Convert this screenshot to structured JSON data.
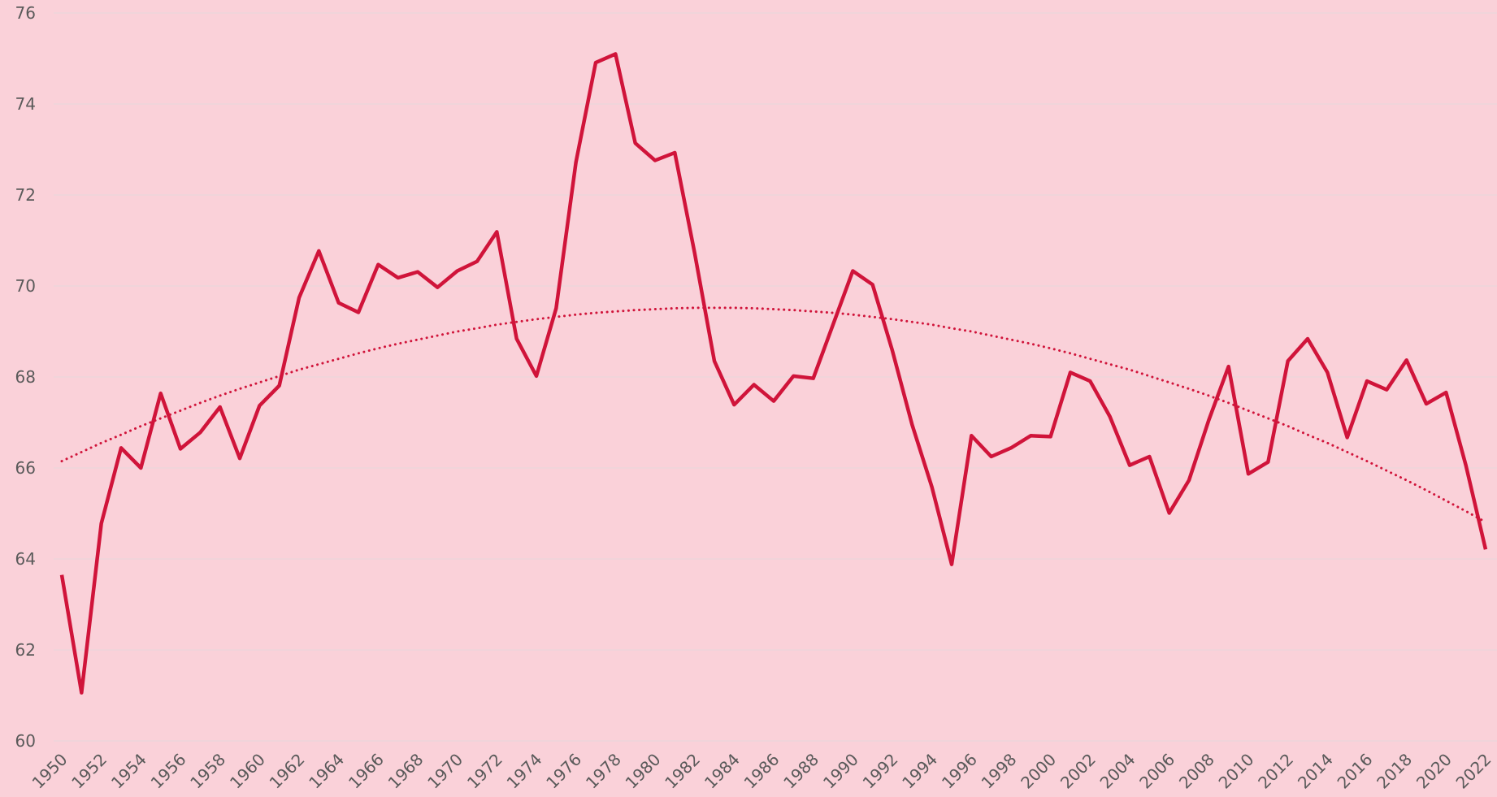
{
  "chart_data": {
    "type": "line",
    "x": [
      1950,
      1951,
      1952,
      1953,
      1954,
      1955,
      1956,
      1957,
      1958,
      1959,
      1960,
      1961,
      1962,
      1963,
      1964,
      1965,
      1966,
      1967,
      1968,
      1969,
      1970,
      1971,
      1972,
      1973,
      1974,
      1975,
      1976,
      1977,
      1978,
      1979,
      1980,
      1981,
      1982,
      1983,
      1984,
      1985,
      1986,
      1987,
      1988,
      1989,
      1990,
      1991,
      1992,
      1993,
      1994,
      1995,
      1996,
      1997,
      1998,
      1999,
      2000,
      2001,
      2002,
      2003,
      2004,
      2005,
      2006,
      2007,
      2008,
      2009,
      2010,
      2011,
      2012,
      2013,
      2014,
      2015,
      2016,
      2017,
      2018,
      2019,
      2020,
      2021,
      2022
    ],
    "series": [
      {
        "color": "#d0143a",
        "style": "solid",
        "values": [
          63.65,
          61.06,
          64.78,
          66.44,
          66.0,
          67.64,
          66.42,
          66.78,
          67.34,
          66.21,
          67.37,
          67.81,
          69.74,
          70.77,
          69.63,
          69.42,
          70.47,
          70.18,
          70.31,
          69.97,
          70.33,
          70.54,
          71.19,
          68.84,
          68.02,
          69.51,
          72.72,
          74.91,
          75.1,
          73.14,
          72.76,
          72.93,
          70.73,
          68.35,
          67.39,
          67.83,
          67.47,
          68.02,
          67.97,
          69.15,
          70.33,
          70.03,
          68.58,
          66.95,
          65.58,
          63.88,
          66.71,
          66.25,
          66.44,
          66.71,
          66.69,
          68.1,
          67.91,
          67.13,
          66.06,
          66.25,
          65.01,
          65.73,
          67.05,
          68.23,
          65.87,
          66.13,
          68.35,
          68.84,
          68.1,
          66.67,
          67.91,
          67.72,
          68.37,
          67.41,
          67.66,
          66.06,
          64.21
        ]
      },
      {
        "color": "#d0143a",
        "style": "dotted",
        "values": [
          66.15,
          66.35,
          66.55,
          66.73,
          66.92,
          67.09,
          67.26,
          67.43,
          67.59,
          67.74,
          67.88,
          68.02,
          68.16,
          68.28,
          68.4,
          68.52,
          68.63,
          68.73,
          68.82,
          68.91,
          69.0,
          69.07,
          69.15,
          69.21,
          69.27,
          69.32,
          69.37,
          69.41,
          69.44,
          69.47,
          69.49,
          69.51,
          69.52,
          69.52,
          69.52,
          69.51,
          69.49,
          69.47,
          69.44,
          69.41,
          69.37,
          69.32,
          69.27,
          69.21,
          69.15,
          69.07,
          69.0,
          68.91,
          68.82,
          68.73,
          68.63,
          68.52,
          68.4,
          68.28,
          68.16,
          68.02,
          67.88,
          67.74,
          67.59,
          67.43,
          67.26,
          67.09,
          66.92,
          66.73,
          66.55,
          66.35,
          66.15,
          65.94,
          65.73,
          65.51,
          65.28,
          65.05,
          64.81
        ]
      }
    ],
    "xlim": [
      1950,
      2022
    ],
    "xticks": [
      1950,
      1952,
      1954,
      1956,
      1958,
      1960,
      1962,
      1964,
      1966,
      1968,
      1970,
      1972,
      1974,
      1976,
      1978,
      1980,
      1982,
      1984,
      1986,
      1988,
      1990,
      1992,
      1994,
      1996,
      1998,
      2000,
      2002,
      2004,
      2006,
      2008,
      2010,
      2012,
      2014,
      2016,
      2018,
      2020,
      2022
    ],
    "ylim": [
      60,
      76
    ],
    "yticks": [
      60,
      62,
      64,
      66,
      68,
      70,
      72,
      74,
      76
    ],
    "grid": true
  }
}
